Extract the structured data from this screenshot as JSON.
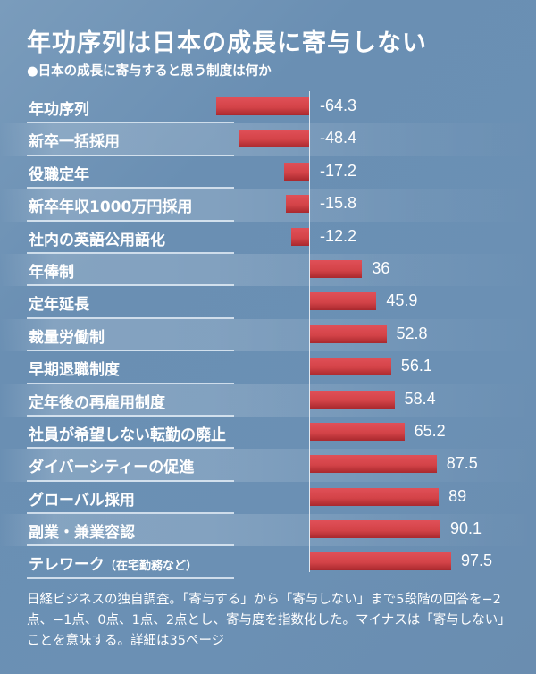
{
  "header": {
    "title": "年功序列は日本の成長に寄与しない",
    "subtitle": "●日本の成長に寄与すると思う制度は何か"
  },
  "rows": [
    {
      "label": "年功序列",
      "value": -64.3,
      "value_label": "-64.3"
    },
    {
      "label": "新卒一括採用",
      "value": -48.4,
      "value_label": "-48.4"
    },
    {
      "label": "役職定年",
      "value": -17.2,
      "value_label": "-17.2"
    },
    {
      "label": "新卒年収1000万円採用",
      "value": -15.8,
      "value_label": "-15.8"
    },
    {
      "label": "社内の英語公用語化",
      "value": -12.2,
      "value_label": "-12.2"
    },
    {
      "label": "年俸制",
      "value": 36,
      "value_label": "36"
    },
    {
      "label": "定年延長",
      "value": 45.9,
      "value_label": "45.9"
    },
    {
      "label": "裁量労働制",
      "value": 52.8,
      "value_label": "52.8"
    },
    {
      "label": "早期退職制度",
      "value": 56.1,
      "value_label": "56.1"
    },
    {
      "label": "定年後の再雇用制度",
      "value": 58.4,
      "value_label": "58.4"
    },
    {
      "label": "社員が希望しない転勤の廃止",
      "value": 65.2,
      "value_label": "65.2"
    },
    {
      "label": "ダイバーシティーの促進",
      "value": 87.5,
      "value_label": "87.5"
    },
    {
      "label": "グローバル採用",
      "value": 89,
      "value_label": "89"
    },
    {
      "label": "副業・兼業容認",
      "value": 90.1,
      "value_label": "90.1"
    },
    {
      "label": "テレワーク",
      "label_suffix": "（在宅勤務など）",
      "value": 97.5,
      "value_label": "97.5"
    }
  ],
  "footnote": "日経ビジネスの独自調査。「寄与する」から「寄与しない」まで5段階の回答を−2点、−1点、0点、1点、2点とし、寄与度を指数化した。マイナスは「寄与しない」ことを意味する。詳細は35ページ",
  "colors": {
    "background": "#6b90b4",
    "bar": "#d44348",
    "text": "#ffffff"
  },
  "chart_data": {
    "type": "bar",
    "orientation": "horizontal",
    "title": "年功序列は日本の成長に寄与しない",
    "subtitle": "日本の成長に寄与すると思う制度は何か",
    "categories": [
      "年功序列",
      "新卒一括採用",
      "役職定年",
      "新卒年収1000万円採用",
      "社内の英語公用語化",
      "年俸制",
      "定年延長",
      "裁量労働制",
      "早期退職制度",
      "定年後の再雇用制度",
      "社員が希望しない転勤の廃止",
      "ダイバーシティーの促進",
      "グローバル採用",
      "副業・兼業容認",
      "テレワーク（在宅勤務など）"
    ],
    "values": [
      -64.3,
      -48.4,
      -17.2,
      -15.8,
      -12.2,
      36,
      45.9,
      52.8,
      56.1,
      58.4,
      65.2,
      87.5,
      89,
      90.1,
      97.5
    ],
    "xlabel": "",
    "ylabel": "",
    "xlim": [
      -100,
      100
    ],
    "grid": false,
    "legend": null,
    "data_labels": true,
    "note": "日経ビジネスの独自調査。「寄与する」から「寄与しない」まで5段階の回答を−2点、−1点、0点、1点、2点とし、寄与度を指数化した。マイナスは「寄与しない」ことを意味する。詳細は35ページ"
  }
}
